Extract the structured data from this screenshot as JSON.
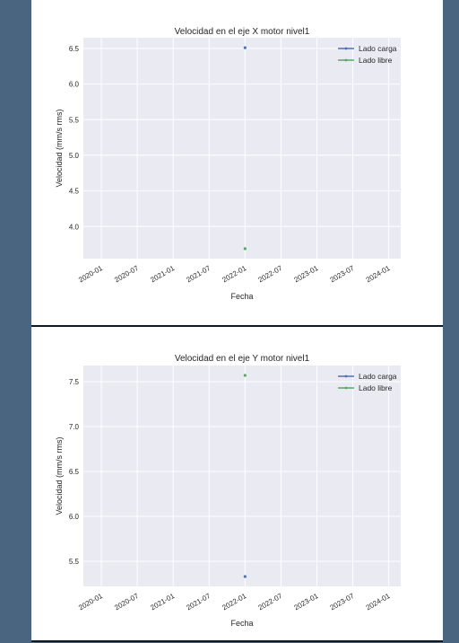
{
  "colors": {
    "series_1": "#4c72b0",
    "series_2": "#55a868",
    "plot_background": "#eaeaf2",
    "grid": "#ffffff",
    "side_background": "#4a6580"
  },
  "chart_data": [
    {
      "type": "scatter",
      "title": "Velocidad en el eje X motor nivel1",
      "xlabel": "Fecha",
      "ylabel": "Velocidad (mm/s rms)",
      "x_ticks": [
        "2020-01",
        "2020-07",
        "2021-01",
        "2021-07",
        "2022-01",
        "2022-07",
        "2023-01",
        "2023-07",
        "2024-01"
      ],
      "y_ticks": [
        "4.0",
        "4.5",
        "5.0",
        "5.5",
        "6.0",
        "6.5"
      ],
      "xlim": [
        "2019-10",
        "2024-03"
      ],
      "ylim": [
        3.55,
        6.65
      ],
      "grid": true,
      "legend_position": "top-right",
      "series": [
        {
          "name": "Lado carga",
          "points": [
            {
              "x": "2022-01",
              "y": 6.51
            }
          ]
        },
        {
          "name": "Lado libre",
          "points": [
            {
              "x": "2022-01",
              "y": 3.69
            }
          ]
        }
      ]
    },
    {
      "type": "scatter",
      "title": "Velocidad en el eje Y motor nivel1",
      "xlabel": "Fecha",
      "ylabel": "Velocidad (mm/s rms)",
      "x_ticks": [
        "2020-01",
        "2020-07",
        "2021-01",
        "2021-07",
        "2022-01",
        "2022-07",
        "2023-01",
        "2023-07",
        "2024-01"
      ],
      "y_ticks": [
        "5.5",
        "6.0",
        "6.5",
        "7.0",
        "7.5"
      ],
      "xlim": [
        "2019-10",
        "2024-03"
      ],
      "ylim": [
        5.22,
        7.68
      ],
      "grid": true,
      "legend_position": "top-right",
      "series": [
        {
          "name": "Lado carga",
          "points": [
            {
              "x": "2022-01",
              "y": 5.33
            }
          ]
        },
        {
          "name": "Lado libre",
          "points": [
            {
              "x": "2022-01",
              "y": 7.57
            }
          ]
        }
      ]
    }
  ]
}
